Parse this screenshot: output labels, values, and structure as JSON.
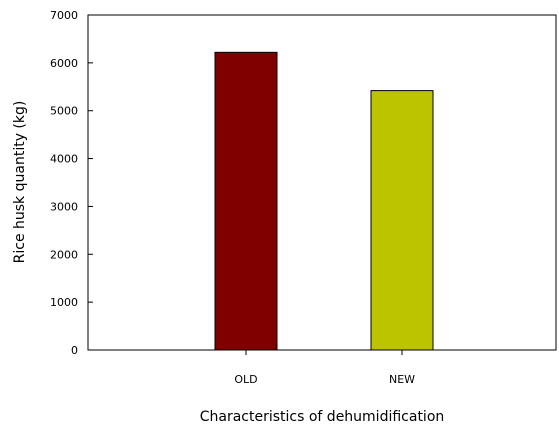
{
  "chart_data": {
    "type": "bar",
    "categories": [
      "OLD",
      "NEW"
    ],
    "values": [
      6220,
      5420
    ],
    "colors": [
      "#800000",
      "#bcc400"
    ],
    "title": "",
    "xlabel": "Characteristics of dehumidification",
    "ylabel": "Rice husk quantity (kg)",
    "ylim": [
      0,
      7000
    ],
    "yticks": [
      0,
      1000,
      2000,
      3000,
      4000,
      5000,
      6000,
      7000
    ],
    "grid": false,
    "legend": "none"
  }
}
